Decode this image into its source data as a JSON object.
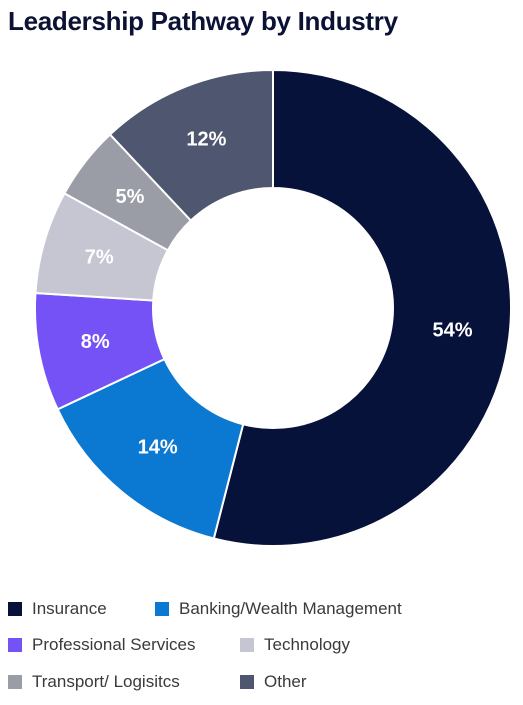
{
  "chart_data": {
    "type": "pie",
    "title": "Leadership Pathway by Industry",
    "categories": [
      "Insurance",
      "Banking/Wealth Management",
      "Professional Services",
      "Technology",
      "Transport/ Logisitcs",
      "Other"
    ],
    "values": [
      54,
      14,
      8,
      7,
      5,
      12
    ],
    "value_labels": [
      "54%",
      "14%",
      "8%",
      "7%",
      "5%",
      "12%"
    ],
    "colors": [
      "#07123b",
      "#0b78d1",
      "#7552f5",
      "#c5c6d1",
      "#9a9ca6",
      "#4f5670"
    ],
    "donut": true,
    "legend": "bottom",
    "legend_entries": [
      {
        "label": "Insurance",
        "color": "#07123b"
      },
      {
        "label": "Banking/Wealth Management",
        "color": "#0b78d1"
      },
      {
        "label": "Professional Services",
        "color": "#7552f5"
      },
      {
        "label": "Technology",
        "color": "#c5c6d1"
      },
      {
        "label": "Transport/ Logisitcs",
        "color": "#9a9ca6"
      },
      {
        "label": "Other",
        "color": "#4f5670"
      }
    ]
  }
}
